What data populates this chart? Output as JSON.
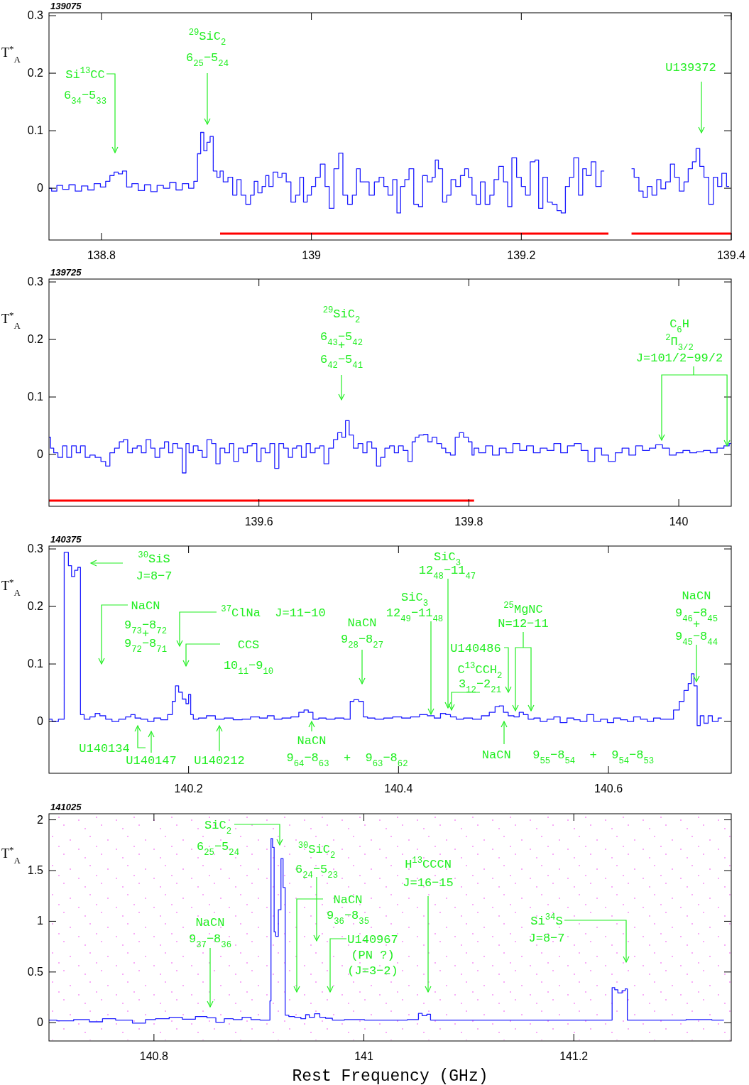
{
  "chart_data": [
    {
      "type": "step",
      "subtitle": "139075",
      "ylabel": "T$^{*}$$_{A}$",
      "xlim": [
        138.75,
        139.4
      ],
      "ylim": [
        -0.09,
        0.305
      ],
      "xticks": [
        138.8,
        139,
        139.2,
        139.4
      ],
      "yticks": [
        0,
        0.1,
        0.2,
        0.3
      ],
      "x": [
        138.75,
        138.755,
        138.76,
        138.766,
        138.772,
        138.778,
        138.784,
        138.79,
        138.796,
        138.802,
        138.806,
        138.81,
        138.814,
        138.818,
        138.822,
        138.826,
        138.832,
        138.838,
        138.844,
        138.85,
        138.856,
        138.862,
        138.868,
        138.874,
        138.88,
        138.886,
        138.89,
        138.893,
        138.896,
        138.899,
        138.902,
        138.905,
        138.908,
        138.912,
        138.914,
        138.918,
        138.923,
        138.927,
        138.931,
        138.935,
        138.94,
        138.944,
        138.947,
        138.951,
        138.955,
        138.958,
        138.961,
        138.966,
        138.97,
        138.974,
        138.978,
        138.983,
        138.987,
        138.991,
        138.994,
        138.998,
        139.002,
        139.006,
        139.011,
        139.015,
        139.019,
        139.024,
        139.028,
        139.032,
        139.037,
        139.041,
        139.045,
        139.048,
        139.052,
        139.058,
        139.062,
        139.067,
        139.071,
        139.075,
        139.08,
        139.083,
        139.087,
        139.091,
        139.095,
        139.1,
        139.104,
        139.108,
        139.113,
        139.117,
        139.119,
        139.123,
        139.127,
        139.131,
        139.135,
        139.14,
        139.144,
        139.148,
        139.151,
        139.155,
        139.159,
        139.163,
        139.168,
        139.172,
        139.176,
        139.181,
        139.185,
        139.189,
        139.193,
        139.198,
        139.202,
        139.206,
        139.211,
        139.215,
        139.218,
        139.223,
        139.227,
        139.232,
        139.236,
        139.24,
        139.244,
        139.248,
        139.252,
        139.257,
        139.26,
        139.264,
        139.269,
        139.273,
        139.279,
        139.294,
        139.305,
        139.31,
        139.314,
        139.318,
        139.322,
        139.327,
        139.331,
        139.335,
        139.34,
        139.344,
        139.348,
        139.353,
        139.357,
        139.361,
        139.365,
        139.368,
        139.372,
        139.376,
        139.381,
        139.385,
        139.389,
        139.393,
        139.398
      ],
      "series": [
        {
          "color": "#1f1fff",
          "values": [
            0,
            -0.005,
            0.005,
            -0.002,
            0.006,
            -0.005,
            0.004,
            -0.003,
            0.008,
            0.002,
            0.012,
            0.022,
            0.028,
            0.025,
            0.03,
            0.002,
            0.008,
            -0.004,
            0.006,
            -0.006,
            0.005,
            0,
            0.01,
            -0.003,
            0.008,
            0,
            0.012,
            0.06,
            0.097,
            0.065,
            0.08,
            0.09,
            0.03,
            0.019,
            0.03,
            0.011,
            0.019,
            -0.012,
            0.015,
            -0.012,
            -0.028,
            -0.012,
            0.012,
            -0.008,
            0.003,
            0.022,
            0.003,
            0.028,
            0.019,
            0.026,
            0.011,
            -0.024,
            -0.012,
            0.019,
            -0.024,
            -0.012,
            0.003,
            0.019,
            0.042,
            0.003,
            -0.035,
            0.034,
            0.061,
            -0.012,
            -0.028,
            -0.012,
            0.034,
            0.011,
            0.011,
            -0.012,
            0.011,
            0.019,
            0.003,
            -0.012,
            0.015,
            -0.043,
            0.003,
            0.015,
            0.034,
            -0.028,
            -0.032,
            0.022,
            0.011,
            0.019,
            0.049,
            0.034,
            -0.024,
            -0.012,
            0.015,
            0.003,
            0.022,
            0.034,
            0.019,
            -0.012,
            -0.028,
            0.011,
            -0.028,
            -0.012,
            0.015,
            0.038,
            0.011,
            -0.032,
            0.053,
            0.019,
            0.003,
            -0.012,
            0.046,
            0.049,
            -0.035,
            0.019,
            -0.024,
            -0.028,
            -0.039,
            -0.043,
            0.003,
            0.019,
            0.053,
            -0.012,
            0.034,
            0.022,
            0.046,
            0.003,
            0.03,
            null,
            0.034,
            0.019,
            -0.005,
            -0.016,
            0.003,
            -0.012,
            0.015,
            -0.001,
            0.011,
            0.042,
            0.019,
            -0.005,
            0.011,
            0.034,
            0.046,
            0.069,
            0.038,
            0.019,
            -0.028,
            0.019,
            0.003,
            0.026,
            0.003
          ]
        },
        {
          "type": "line",
          "color": "#ff0000",
          "x": [
            138.913,
            139.283,
            139.294,
            139.305,
            139.4
          ],
          "values": [
            -0.079,
            -0.079,
            null,
            -0.079,
            -0.079
          ]
        }
      ],
      "annotations": [
        "Si$^{13}$CC\n6$_{34}$−5$_{33}$",
        "$^{29}$SiC$_{2}$\n6$_{25}$−5$_{24}$",
        "U139372"
      ]
    },
    {
      "type": "step",
      "subtitle": "139725",
      "ylabel": "T$^{*}$$_{A}$",
      "xlim": [
        139.4,
        140.05
      ],
      "ylim": [
        -0.09,
        0.305
      ],
      "xticks": [
        139.6,
        139.8,
        140
      ],
      "yticks": [
        0,
        0.1,
        0.2,
        0.3
      ],
      "x": [
        139.4,
        139.403,
        139.406,
        139.411,
        139.415,
        139.419,
        139.424,
        139.428,
        139.432,
        139.437,
        139.441,
        139.447,
        139.452,
        139.456,
        139.46,
        139.465,
        139.469,
        139.473,
        139.477,
        139.482,
        139.486,
        139.49,
        139.495,
        139.499,
        139.503,
        139.508,
        139.512,
        139.516,
        139.52,
        139.525,
        139.529,
        139.532,
        139.535,
        139.54,
        139.544,
        139.548,
        139.553,
        139.557,
        139.561,
        139.565,
        139.57,
        139.574,
        139.578,
        139.583,
        139.587,
        139.591,
        139.596,
        139.6,
        139.604,
        139.608,
        139.613,
        139.617,
        139.621,
        139.626,
        139.63,
        139.634,
        139.638,
        139.643,
        139.647,
        139.651,
        139.656,
        139.66,
        139.664,
        139.669,
        139.673,
        139.677,
        139.681,
        139.684,
        139.688,
        139.692,
        139.697,
        139.701,
        139.705,
        139.71,
        139.714,
        139.718,
        139.722,
        139.727,
        139.731,
        139.735,
        139.74,
        139.744,
        139.748,
        139.75,
        139.755,
        139.759,
        139.763,
        139.767,
        139.772,
        139.776,
        139.78,
        139.785,
        139.789,
        139.793,
        139.797,
        139.802,
        139.804,
        139.806,
        139.813,
        139.819,
        139.826,
        139.832,
        139.839,
        139.845,
        139.852,
        139.858,
        139.865,
        139.871,
        139.878,
        139.884,
        139.891,
        139.897,
        139.904,
        139.91,
        139.917,
        139.923,
        139.93,
        139.936,
        139.943,
        139.949,
        139.956,
        139.962,
        139.969,
        139.975,
        139.981,
        139.988,
        139.994,
        140.001,
        140.007,
        140.014,
        140.02,
        140.027,
        140.033,
        140.04,
        140.046,
        140.05
      ],
      "series": [
        {
          "color": "#1f1fff",
          "values": [
            0.03,
            0.011,
            0.003,
            -0.005,
            0.015,
            -0.005,
            0.015,
            0.003,
            0.015,
            -0.005,
            -0.001,
            -0.005,
            -0.012,
            -0.02,
            0.003,
            0.011,
            0.022,
            0.026,
            0.003,
            0.011,
            0.015,
            0.003,
            0.026,
            0.011,
            -0.005,
            0.011,
            0.022,
            0.003,
            0.019,
            0.011,
            -0.032,
            0.019,
            0.003,
            0.015,
            0.007,
            -0.005,
            0.026,
            0.019,
            -0.016,
            0.011,
            0.003,
            0.019,
            -0.012,
            0.011,
            0.003,
            0.015,
            0.019,
            -0.012,
            0.011,
            0.003,
            0.019,
            -0.024,
            0.019,
            0.011,
            -0.005,
            0.011,
            0.015,
            -0.005,
            0.019,
            0.003,
            0.011,
            0.015,
            -0.016,
            0.011,
            0.026,
            0.038,
            0.03,
            0.059,
            0.034,
            0.011,
            0.019,
            0.003,
            0.022,
            0.011,
            -0.02,
            -0.005,
            0.011,
            0.015,
            0.003,
            0.015,
            0.007,
            -0.012,
            0.022,
            0.03,
            0.034,
            0.035,
            0.022,
            0.03,
            0.019,
            0.011,
            0.003,
            -0.001,
            0.03,
            0.038,
            0.03,
            0.022,
            -0.001,
            0.011,
            0.003,
            0.015,
            -0.001,
            0.011,
            0.003,
            0.019,
            0.007,
            0.015,
            0.003,
            0.011,
            0.007,
            0.019,
            0.003,
            0.015,
            0.019,
            0.007,
            -0.012,
            0.011,
            -0.001,
            -0.012,
            0.003,
            0.011,
            -0.001,
            0.015,
            0.007,
            0.011,
            0.017,
            0.011,
            -0.001,
            0.003,
            0.007,
            0.003,
            0.005,
            0.007,
            0.003,
            0.011,
            0.015,
            0.019
          ]
        },
        {
          "type": "line",
          "color": "#ff0000",
          "x": [
            139.4,
            139.805
          ],
          "values": [
            -0.08,
            -0.08
          ]
        }
      ],
      "annotations": [
        "$^{29}$SiC$_{2}$\n6$_{43}$−5$_{42}$\n+\n6$_{42}$−5$_{41}$",
        {
          "text": "C$_{6}$H\n$^{2}$Π$_{3/2}$\nJ=101/2−99/2",
          "x": 140.046,
          "y": 0.015
        }
      ]
    },
    {
      "type": "step",
      "subtitle": "140375",
      "ylabel": "T$^{*}$$_{A}$",
      "xlim": [
        140.067,
        140.717
      ],
      "ylim": [
        -0.09,
        0.305
      ],
      "xticks": [
        140.2,
        140.4,
        140.6
      ],
      "yticks": [
        0,
        0.1,
        0.2,
        0.3
      ],
      "x": [
        140.067,
        140.073,
        140.079,
        140.084,
        140.087,
        140.09,
        140.093,
        140.096,
        140.098,
        140.103,
        140.109,
        140.113,
        140.118,
        140.124,
        140.13,
        140.137,
        140.143,
        140.147,
        140.151,
        140.158,
        140.164,
        140.17,
        140.177,
        140.183,
        140.186,
        140.189,
        140.192,
        140.196,
        140.199,
        140.201,
        140.203,
        140.206,
        140.213,
        140.221,
        140.23,
        140.238,
        140.247,
        140.255,
        140.263,
        140.272,
        140.278,
        140.285,
        140.293,
        140.302,
        140.308,
        140.312,
        140.316,
        140.321,
        140.327,
        140.335,
        140.344,
        140.352,
        140.356,
        140.359,
        140.365,
        140.368,
        140.373,
        140.382,
        140.39,
        140.399,
        140.407,
        140.416,
        140.424,
        140.431,
        140.437,
        140.443,
        140.447,
        140.452,
        140.458,
        140.466,
        140.475,
        140.483,
        140.49,
        140.494,
        140.498,
        140.502,
        140.507,
        140.513,
        140.517,
        140.521,
        140.526,
        140.532,
        140.538,
        140.545,
        140.551,
        140.557,
        140.564,
        140.57,
        140.576,
        140.583,
        140.589,
        140.596,
        140.602,
        140.608,
        140.615,
        140.621,
        140.627,
        140.634,
        140.64,
        140.646,
        140.653,
        140.659,
        140.665,
        140.67,
        140.674,
        140.678,
        140.68,
        140.683,
        140.686,
        140.689,
        140.693,
        140.697,
        140.701,
        140.708
      ],
      "series": [
        {
          "color": "#1f1fff",
          "values": [
            0.004,
            0,
            0.004,
            0.294,
            0.271,
            0.252,
            0.263,
            0.268,
            0.012,
            0.004,
            0.008,
            0.014,
            0.01,
            0.004,
            0,
            0.004,
            0.008,
            0.012,
            0.006,
            0.004,
            0,
            0.006,
            0.003,
            0.012,
            0.035,
            0.062,
            0.051,
            0.039,
            0.031,
            0.047,
            0.012,
            0.004,
            0.006,
            0.01,
            0.004,
            0.006,
            0.003,
            0.004,
            0.008,
            0.006,
            0.01,
            0.004,
            0.006,
            0.008,
            0.016,
            0.02,
            0.016,
            0.004,
            0.006,
            0.004,
            0.006,
            0.004,
            0.035,
            0.038,
            0.035,
            0.008,
            0.006,
            0.004,
            0.006,
            0.008,
            0.006,
            0.008,
            0.012,
            0.01,
            0.006,
            0.014,
            0.012,
            0.008,
            0.004,
            0.006,
            0.004,
            0.01,
            0.016,
            0.026,
            0.027,
            0.016,
            0.01,
            0.008,
            0.016,
            0.012,
            0.004,
            0.006,
            0,
            0.004,
            0.008,
            -0.002,
            0.006,
            0.003,
            0,
            0.012,
            0,
            0.004,
            -0.002,
            0.006,
            0.003,
            0,
            0.008,
            0.004,
            0,
            0.006,
            0.004,
            0.004,
            0.02,
            0.035,
            0.054,
            0.066,
            0.083,
            0.062,
            -0.007,
            0.01,
            -0.003,
            0.01,
            0,
            0.006
          ]
        }
      ],
      "annotations": [
        "$^{30}$SiS\nJ=8−7",
        "NaCN\n9$_{73}$−8$_{72}$\n+\n9$_{72}$−8$_{71}$",
        "$^{37}$ClNa  J=11−10",
        "CCS\n10$_{11}$−9$_{10}$",
        "NaCN\n9$_{28}$−8$_{27}$",
        "SiC$_{3}$\n12$_{48}$−11$_{47}$",
        "SiC$_{3}$\n12$_{49}$−11$_{48}$",
        "$^{25}$MgNC\nN=12−11",
        "U140486",
        "C$^{13}$CCH$_{2}$\n3$_{12}$−2$_{21}$",
        "NaCN\n9$_{46}$−8$_{45}$\n+\n9$_{45}$−8$_{44}$",
        "U140134",
        "U140147",
        "U140212",
        "NaCN\n9$_{64}$−8$_{63}$  +  9$_{63}$−8$_{62}$",
        "NaCN   9$_{55}$−8$_{54}$  +  9$_{54}$−8$_{53}$"
      ]
    },
    {
      "type": "step",
      "subtitle": "141025",
      "ylabel": "T$^{*}$$_{A}$",
      "xlabel": "Rest Frequency (GHz)",
      "xlim": [
        140.7,
        141.35
      ],
      "ylim": [
        -0.18,
        2.06
      ],
      "xticks": [
        140.8,
        141,
        141.2
      ],
      "yticks": [
        0,
        0.5,
        1,
        1.5,
        2
      ],
      "x": [
        140.7,
        140.715,
        140.732,
        140.745,
        140.757,
        140.77,
        140.789,
        140.795,
        140.808,
        140.821,
        140.833,
        140.846,
        140.855,
        140.863,
        140.871,
        140.88,
        140.888,
        140.897,
        140.905,
        140.91,
        140.911,
        140.912,
        140.914,
        140.915,
        140.917,
        140.92,
        140.922,
        140.924,
        140.926,
        140.931,
        140.937,
        140.943,
        140.946,
        140.95,
        140.956,
        140.96,
        140.967,
        140.973,
        140.99,
        141.011,
        141.032,
        141.051,
        141.053,
        141.058,
        141.062,
        141.065,
        141.075,
        141.096,
        141.117,
        141.138,
        141.159,
        141.18,
        141.201,
        141.235,
        141.238,
        141.24,
        141.244,
        141.248,
        141.25,
        141.252,
        141.269,
        141.294,
        141.32,
        141.343
      ],
      "series": [
        {
          "color": "#1f1fff",
          "values": [
            0.026,
            0.018,
            0.031,
            0.009,
            0.039,
            0.026,
            -0.004,
            0.031,
            0.039,
            0.053,
            0.035,
            0.061,
            0.048,
            0.004,
            0.039,
            0.031,
            0.053,
            0.031,
            0.026,
            0.026,
            0.215,
            1.816,
            1.728,
            0.895,
            0.851,
            1.114,
            1.618,
            1.333,
            0.075,
            0.061,
            0.053,
            0.039,
            0.079,
            0.053,
            0.088,
            0.053,
            0.044,
            0.026,
            0.031,
            0.026,
            0.026,
            0.031,
            0.092,
            0.07,
            0.083,
            0.026,
            0.026,
            0.026,
            0.026,
            0.026,
            0.026,
            0.026,
            0.026,
            0.026,
            0.346,
            0.325,
            0.294,
            0.316,
            0.333,
            0.026,
            0.026,
            0.026,
            0.031,
            0.026
          ]
        }
      ],
      "annotations": [
        "SiC$_{2}$\n6$_{25}$−5$_{24}$",
        "$^{30}$SiC$_{2}$\n6$_{24}$−5$_{23}$",
        "NaCN\n9$_{36}$−8$_{35}$",
        "U140967\n(PN ?)\n(J=3−2)",
        "H$^{13}$CCCN\nJ=16−15",
        "Si$^{34}$S\nJ=8−7",
        "NaCN\n9$_{37}$−8$_{36}$"
      ]
    }
  ]
}
